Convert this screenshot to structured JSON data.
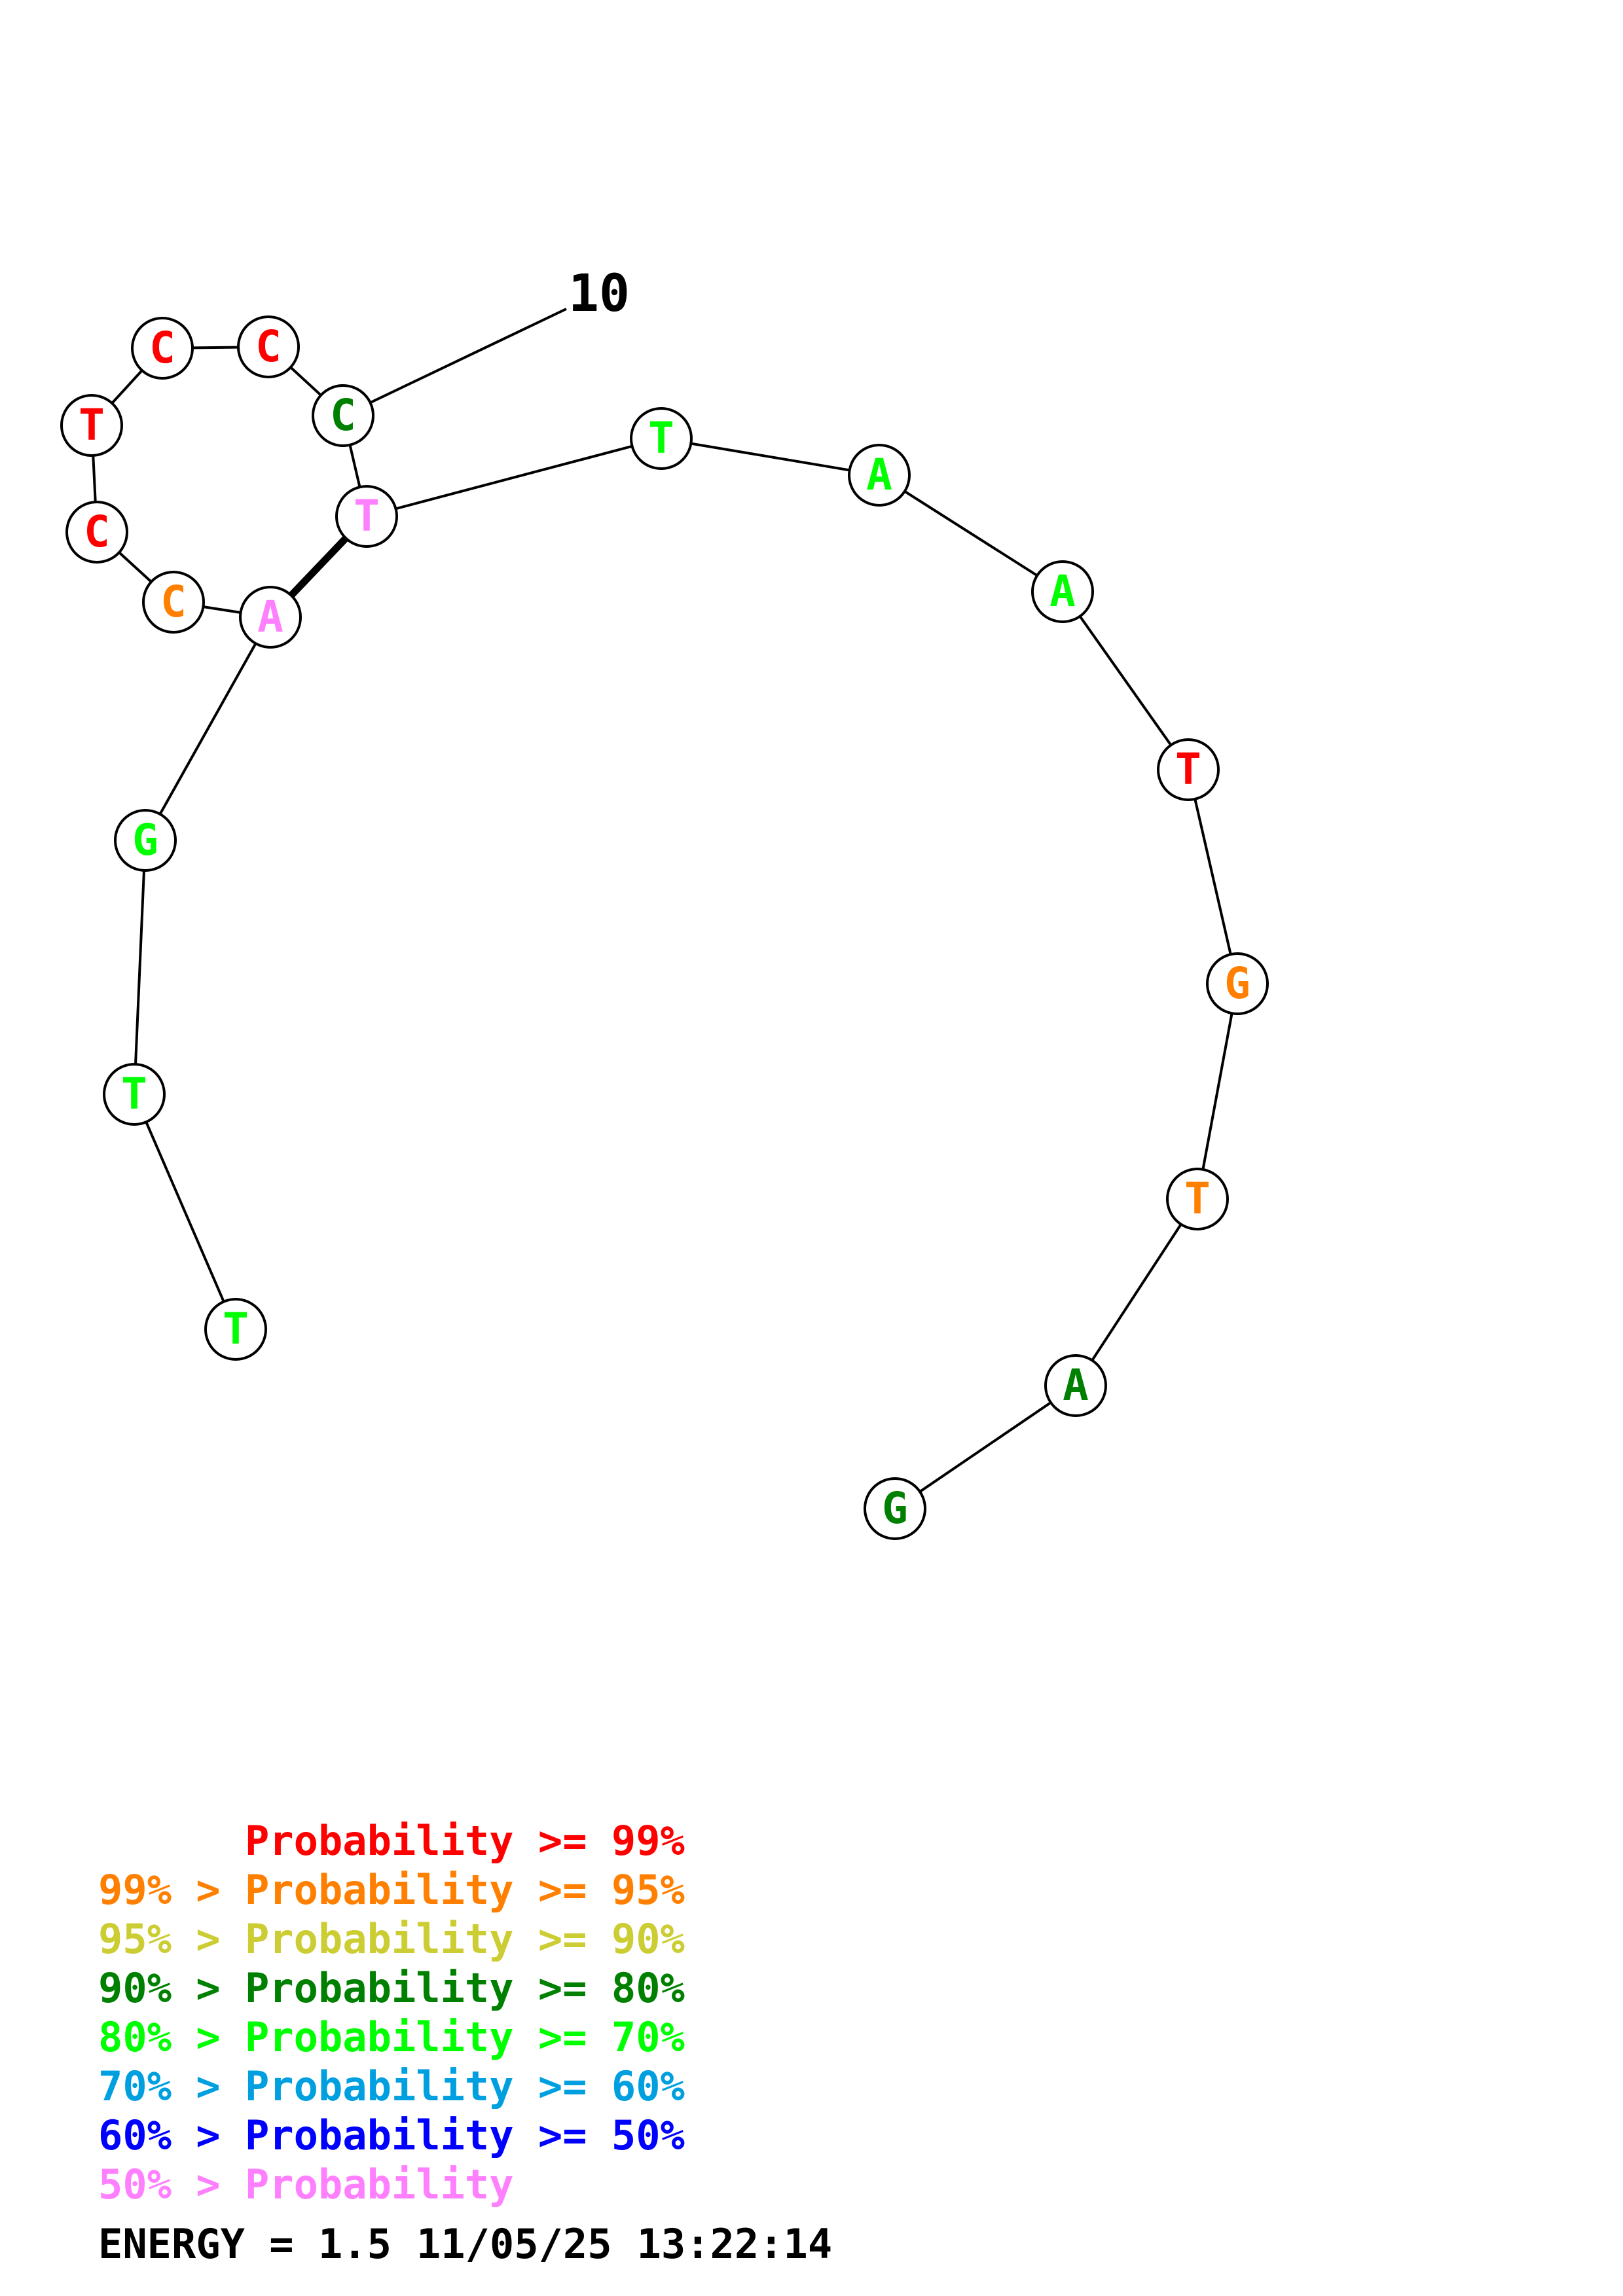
{
  "structure": {
    "nucleotides": [
      {
        "letter": "G",
        "color": "#008000"
      },
      {
        "letter": "A",
        "color": "#008000"
      },
      {
        "letter": "T",
        "color": "#ff8000"
      },
      {
        "letter": "G",
        "color": "#ff8000"
      },
      {
        "letter": "T",
        "color": "#ff0000"
      },
      {
        "letter": "A",
        "color": "#00ff00"
      },
      {
        "letter": "A",
        "color": "#00ff00"
      },
      {
        "letter": "T",
        "color": "#00ff00"
      },
      {
        "letter": "T",
        "color": "#ff80ff"
      },
      {
        "letter": "C",
        "color": "#008000"
      },
      {
        "letter": "C",
        "color": "#ff0000"
      },
      {
        "letter": "C",
        "color": "#ff0000"
      },
      {
        "letter": "T",
        "color": "#ff0000"
      },
      {
        "letter": "C",
        "color": "#ff0000"
      },
      {
        "letter": "C",
        "color": "#ff8000"
      },
      {
        "letter": "A",
        "color": "#ff80ff"
      },
      {
        "letter": "G",
        "color": "#00ff00"
      },
      {
        "letter": "T",
        "color": "#00ff00"
      },
      {
        "letter": "T",
        "color": "#00ff00"
      }
    ],
    "pairs": [
      [
        9,
        16
      ]
    ],
    "position_label": {
      "text": "10",
      "index": 10
    }
  },
  "legend": [
    {
      "prefix": "",
      "label": "Probability",
      "suffix": ">= 99%",
      "color": "#ff0000"
    },
    {
      "prefix": "99% >",
      "label": "Probability",
      "suffix": ">= 95%",
      "color": "#ff8000"
    },
    {
      "prefix": "95% >",
      "label": "Probability",
      "suffix": ">= 90%",
      "color": "#cccc33"
    },
    {
      "prefix": "90% >",
      "label": "Probability",
      "suffix": ">= 80%",
      "color": "#008000"
    },
    {
      "prefix": "80% >",
      "label": "Probability",
      "suffix": ">= 70%",
      "color": "#00ff00"
    },
    {
      "prefix": "70% >",
      "label": "Probability",
      "suffix": ">= 60%",
      "color": "#00a0e0"
    },
    {
      "prefix": "60% >",
      "label": "Probability",
      "suffix": ">= 50%",
      "color": "#0000ff"
    },
    {
      "prefix": "50% >",
      "label": "Probability",
      "suffix": "",
      "color": "#ff80ff"
    }
  ],
  "footer": {
    "energy": "ENERGY = 1.5",
    "date": "11/05/25",
    "time": "13:22:14"
  }
}
